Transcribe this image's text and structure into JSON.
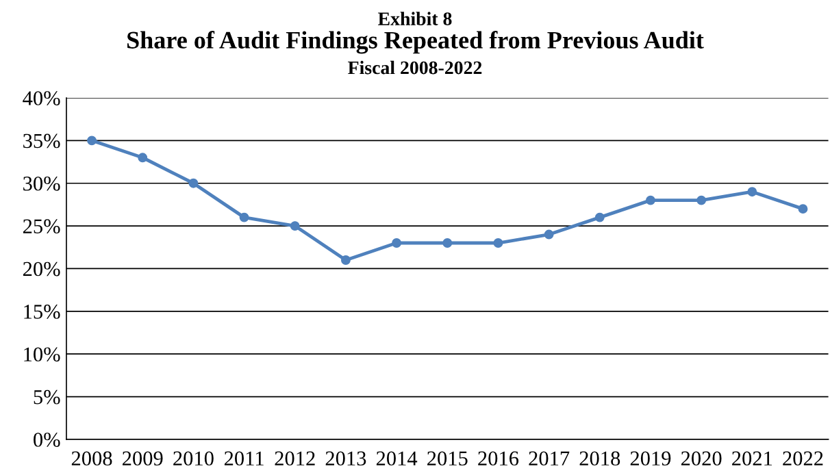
{
  "chart_data": {
    "type": "line",
    "title": "Share of Audit Findings Repeated from Previous Audit",
    "subtitle": "Fiscal 2008-2022",
    "annotations": [
      "Exhibit 8"
    ],
    "categories": [
      "2008",
      "2009",
      "2010",
      "2011",
      "2012",
      "2013",
      "2014",
      "2015",
      "2016",
      "2017",
      "2018",
      "2019",
      "2020",
      "2021",
      "2022"
    ],
    "series": [
      {
        "color": "#4f81bd",
        "values": [
          35,
          33,
          30,
          26,
          25,
          21,
          23,
          23,
          23,
          24,
          26,
          28,
          28,
          29,
          27
        ]
      }
    ],
    "ylim": [
      0,
      40
    ],
    "yticks": [
      {
        "value": 0,
        "label": "0%"
      },
      {
        "value": 5,
        "label": "5%"
      },
      {
        "value": 10,
        "label": "10%"
      },
      {
        "value": 15,
        "label": "15%"
      },
      {
        "value": 20,
        "label": "20%"
      },
      {
        "value": 25,
        "label": "25%"
      },
      {
        "value": 30,
        "label": "30%"
      },
      {
        "value": 35,
        "label": "35%"
      },
      {
        "value": 40,
        "label": "40%"
      }
    ],
    "grid": "y",
    "marker": "circle",
    "line_style": "solid"
  }
}
